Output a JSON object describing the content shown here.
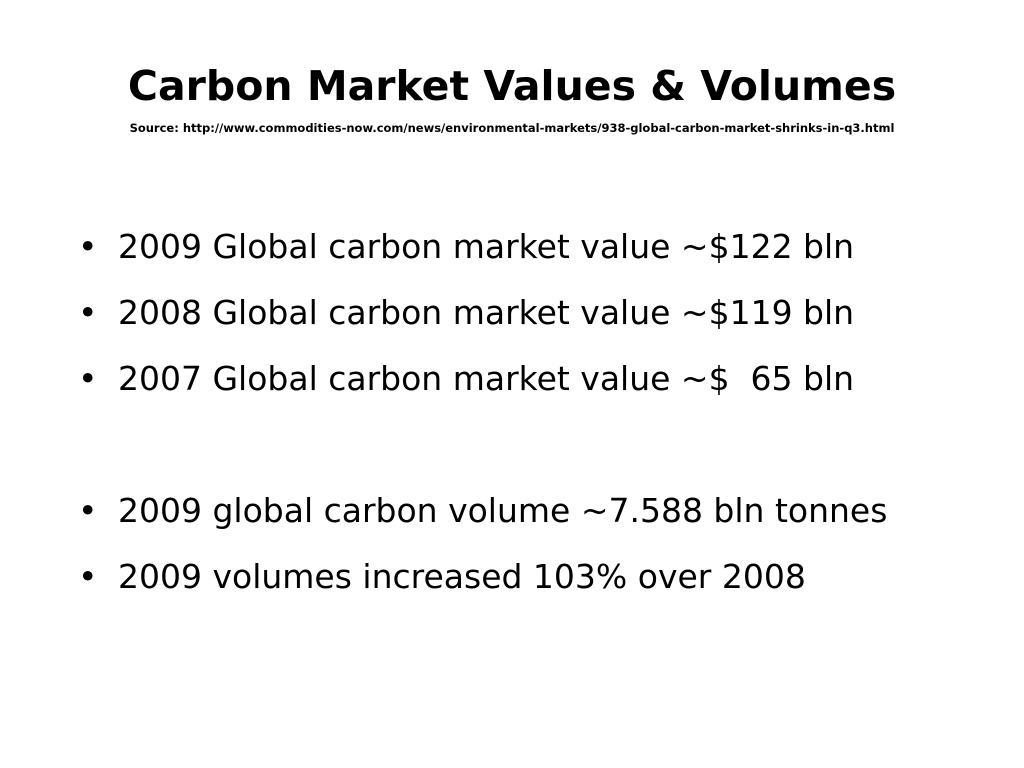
{
  "slide": {
    "title": "Carbon Market Values & Volumes",
    "source": "Source: http://www.commodities-now.com/news/environmental-markets/938-global-carbon-market-shrinks-in-q3.html",
    "bullet_symbol": "•",
    "bullets": [
      "2009 Global carbon market value ~$122 bln",
      "2008 Global carbon market value ~$119 bln",
      "2007 Global carbon market value ~$  65 bln",
      "2009 global carbon volume ~7.588 bln tonnes",
      "2009 volumes increased 103% over 2008"
    ]
  }
}
